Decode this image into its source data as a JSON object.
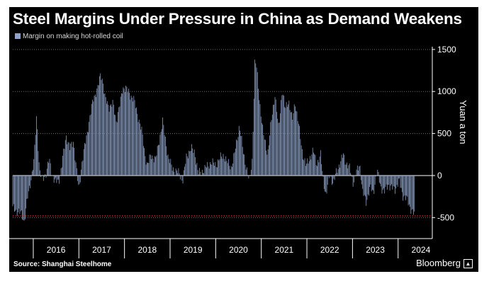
{
  "chart_data": {
    "type": "bar",
    "title": "Steel Margins Under Pressure in China as Demand Weakens",
    "legend": [
      "Margin on making hot-rolled coil"
    ],
    "xlabel": "",
    "ylabel": "Yuan a ton",
    "ylim": [
      -750,
      1600
    ],
    "yticks": [
      1500,
      1000,
      500,
      0,
      -500
    ],
    "ytick_labels": [
      "1500",
      "1000",
      "500",
      "0",
      "-500"
    ],
    "xlim": [
      2015.55,
      2024.75
    ],
    "year_labels": [
      "2016",
      "2017",
      "2018",
      "2019",
      "2020",
      "2021",
      "2022",
      "2023",
      "2024"
    ],
    "reference_line": {
      "value": -480,
      "color": "#c0282d"
    },
    "series": [
      {
        "name": "Margin on making hot-rolled coil",
        "color": "#8fa3c8",
        "keyframes": [
          [
            2015.55,
            -390
          ],
          [
            2015.75,
            -460
          ],
          [
            2015.8,
            -545
          ],
          [
            2015.88,
            -250
          ],
          [
            2015.95,
            -50
          ],
          [
            2016.02,
            200
          ],
          [
            2016.07,
            710
          ],
          [
            2016.1,
            430
          ],
          [
            2016.14,
            40
          ],
          [
            2016.2,
            -50
          ],
          [
            2016.28,
            30
          ],
          [
            2016.35,
            190
          ],
          [
            2016.41,
            20
          ],
          [
            2016.48,
            -80
          ],
          [
            2016.56,
            -60
          ],
          [
            2016.62,
            100
          ],
          [
            2016.72,
            480
          ],
          [
            2016.8,
            320
          ],
          [
            2016.88,
            410
          ],
          [
            2016.94,
            110
          ],
          [
            2017.0,
            -180
          ],
          [
            2017.06,
            130
          ],
          [
            2017.14,
            380
          ],
          [
            2017.24,
            690
          ],
          [
            2017.32,
            920
          ],
          [
            2017.42,
            1050
          ],
          [
            2017.48,
            1210
          ],
          [
            2017.52,
            1140
          ],
          [
            2017.58,
            900
          ],
          [
            2017.66,
            820
          ],
          [
            2017.74,
            860
          ],
          [
            2017.82,
            650
          ],
          [
            2017.92,
            900
          ],
          [
            2017.96,
            1040
          ],
          [
            2018.02,
            1050
          ],
          [
            2018.1,
            980
          ],
          [
            2018.2,
            910
          ],
          [
            2018.3,
            700
          ],
          [
            2018.38,
            520
          ],
          [
            2018.44,
            290
          ],
          [
            2018.5,
            110
          ],
          [
            2018.58,
            250
          ],
          [
            2018.68,
            180
          ],
          [
            2018.76,
            420
          ],
          [
            2018.84,
            640
          ],
          [
            2018.9,
            420
          ],
          [
            2018.96,
            210
          ],
          [
            2019.04,
            100
          ],
          [
            2019.12,
            50
          ],
          [
            2019.2,
            30
          ],
          [
            2019.28,
            -60
          ],
          [
            2019.36,
            230
          ],
          [
            2019.46,
            320
          ],
          [
            2019.54,
            280
          ],
          [
            2019.62,
            20
          ],
          [
            2019.72,
            60
          ],
          [
            2019.82,
            110
          ],
          [
            2019.9,
            160
          ],
          [
            2020.0,
            120
          ],
          [
            2020.08,
            200
          ],
          [
            2020.18,
            240
          ],
          [
            2020.26,
            150
          ],
          [
            2020.34,
            100
          ],
          [
            2020.4,
            220
          ],
          [
            2020.46,
            400
          ],
          [
            2020.52,
            600
          ],
          [
            2020.6,
            290
          ],
          [
            2020.68,
            80
          ],
          [
            2020.74,
            -80
          ],
          [
            2020.8,
            180
          ],
          [
            2020.86,
            1380
          ],
          [
            2020.9,
            1270
          ],
          [
            2020.96,
            900
          ],
          [
            2021.04,
            500
          ],
          [
            2021.14,
            260
          ],
          [
            2021.22,
            650
          ],
          [
            2021.3,
            970
          ],
          [
            2021.38,
            550
          ],
          [
            2021.46,
            1040
          ],
          [
            2021.52,
            780
          ],
          [
            2021.6,
            900
          ],
          [
            2021.68,
            650
          ],
          [
            2021.74,
            880
          ],
          [
            2021.82,
            600
          ],
          [
            2021.9,
            280
          ],
          [
            2021.98,
            110
          ],
          [
            2022.06,
            210
          ],
          [
            2022.14,
            290
          ],
          [
            2022.22,
            140
          ],
          [
            2022.3,
            240
          ],
          [
            2022.36,
            -50
          ],
          [
            2022.42,
            -240
          ],
          [
            2022.5,
            20
          ],
          [
            2022.58,
            -100
          ],
          [
            2022.66,
            70
          ],
          [
            2022.74,
            160
          ],
          [
            2022.8,
            250
          ],
          [
            2022.86,
            150
          ],
          [
            2022.94,
            80
          ],
          [
            2023.02,
            -90
          ],
          [
            2023.08,
            30
          ],
          [
            2023.16,
            140
          ],
          [
            2023.22,
            -200
          ],
          [
            2023.3,
            -310
          ],
          [
            2023.38,
            -150
          ],
          [
            2023.46,
            -200
          ],
          [
            2023.54,
            60
          ],
          [
            2023.62,
            -130
          ],
          [
            2023.7,
            -200
          ],
          [
            2023.78,
            -100
          ],
          [
            2023.86,
            -150
          ],
          [
            2023.94,
            -160
          ],
          [
            2024.02,
            -60
          ],
          [
            2024.1,
            -230
          ],
          [
            2024.2,
            -290
          ],
          [
            2024.3,
            -420
          ],
          [
            2024.36,
            -470
          ]
        ]
      }
    ]
  },
  "source": "Source: Shanghai Steelhome",
  "brand": "Bloomberg"
}
